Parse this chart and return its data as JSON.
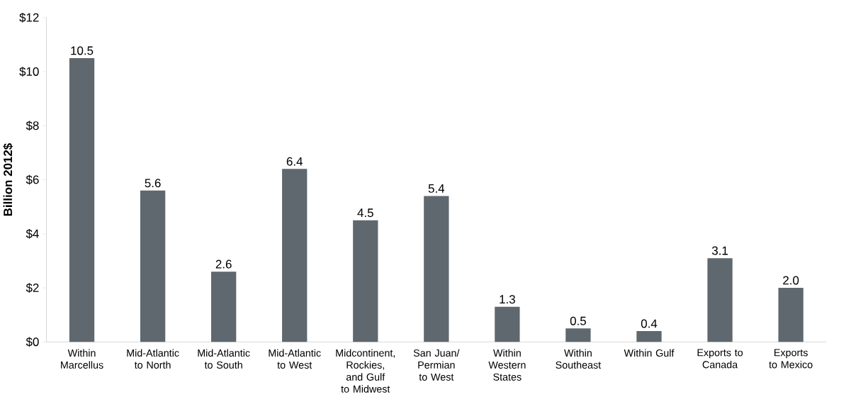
{
  "chart_data": {
    "type": "bar",
    "ylabel": "Billion 2012$",
    "categories": [
      "Within Marcellus",
      "Mid-Atlantic to North",
      "Mid-Atlantic to South",
      "Mid-Atlantic to West",
      "Midcontinent, Rockies, and Gulf to Midwest",
      "San Juan/ Permian to West",
      "Within Western States",
      "Within Southeast",
      "Within Gulf",
      "Exports to Canada",
      "Exports to Mexico"
    ],
    "values": [
      10.5,
      5.6,
      2.6,
      6.4,
      4.5,
      5.4,
      1.3,
      0.5,
      0.4,
      3.1,
      2.0
    ],
    "color": "#5f686e",
    "value_labels": [
      "10.5",
      "5.6",
      "2.6",
      "6.4",
      "4.5",
      "5.4",
      "1.3",
      "0.5",
      "0.4",
      "3.1",
      "2.0"
    ],
    "ylim": [
      0,
      12
    ],
    "yticks": [
      {
        "value": 0,
        "label": "$0"
      },
      {
        "value": 2,
        "label": "$2"
      },
      {
        "value": 4,
        "label": "$4"
      },
      {
        "value": 6,
        "label": "$6"
      },
      {
        "value": 8,
        "label": "$8"
      },
      {
        "value": 10,
        "label": "$10"
      },
      {
        "value": 12,
        "label": "$12"
      }
    ]
  }
}
